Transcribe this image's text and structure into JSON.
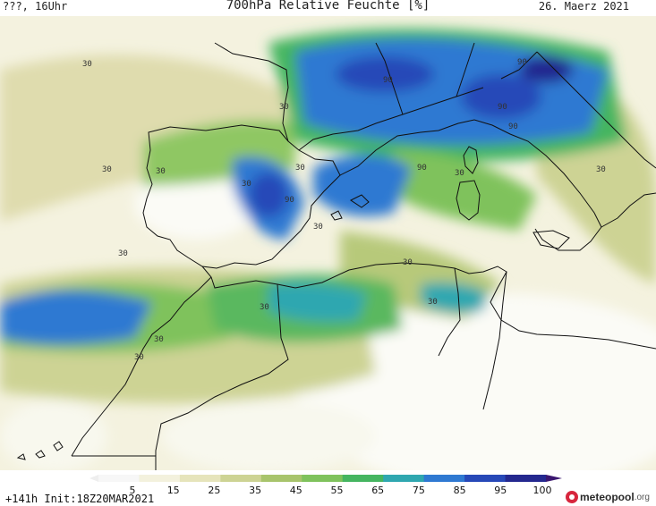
{
  "header": {
    "left": "???, 16Uhr",
    "title": "700hPa Relative Feuchte [%]",
    "date": "26. Maerz 2021"
  },
  "footer": {
    "init": "+141h Init:18Z20MAR2021",
    "logo_name": "meteopool",
    "logo_tld": ".org"
  },
  "colorbar": {
    "ticks": [
      "5",
      "15",
      "25",
      "35",
      "45",
      "55",
      "65",
      "75",
      "85",
      "95",
      "100"
    ],
    "colors": [
      "#f7f7f7",
      "#f3f1dd",
      "#e6e4bb",
      "#cdd394",
      "#a8c46c",
      "#7fc25c",
      "#45b560",
      "#2fa7b0",
      "#2f79d2",
      "#2748b8",
      "#24288f",
      "#3a1670"
    ]
  },
  "contour_labels": [
    {
      "text": "30"
    },
    {
      "text": "30"
    },
    {
      "text": "30"
    },
    {
      "text": "30"
    },
    {
      "text": "30"
    },
    {
      "text": "30"
    },
    {
      "text": "30"
    },
    {
      "text": "30"
    },
    {
      "text": "30"
    },
    {
      "text": "30"
    },
    {
      "text": "30"
    },
    {
      "text": "30"
    },
    {
      "text": "30"
    },
    {
      "text": "30"
    },
    {
      "text": "30"
    },
    {
      "text": "90"
    },
    {
      "text": "90"
    },
    {
      "text": "90"
    },
    {
      "text": "90"
    },
    {
      "text": "90"
    },
    {
      "text": "90"
    }
  ]
}
